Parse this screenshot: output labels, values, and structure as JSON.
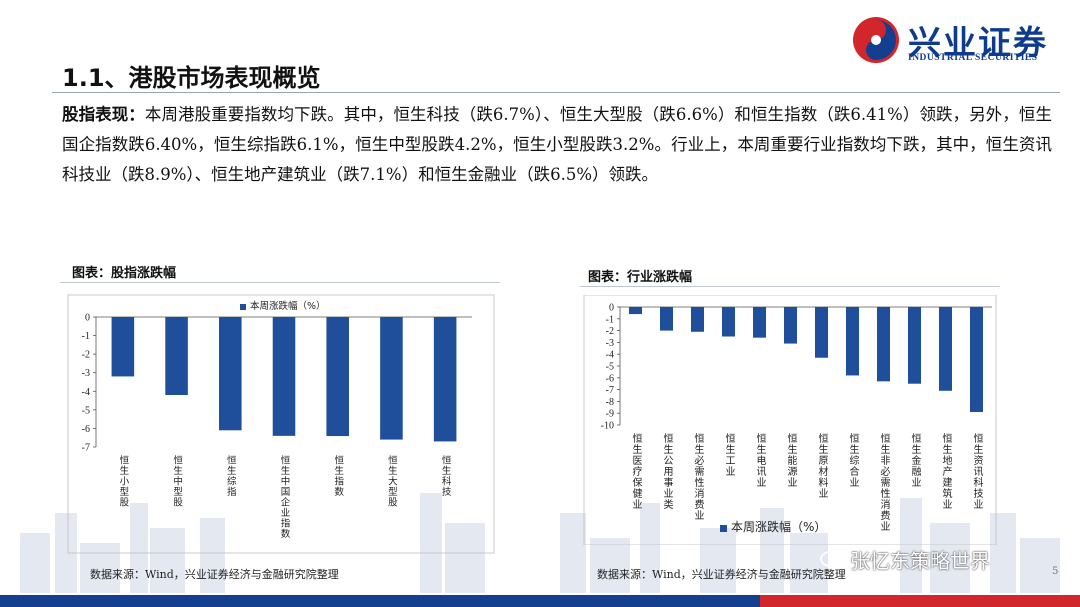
{
  "header": {
    "logo_cn": "兴业证券",
    "logo_en": "INDUSTRIAL SECURITIES",
    "title": "1.1、港股市场表现概览"
  },
  "summary": {
    "lead": "股指表现：",
    "text": "本周港股重要指数均下跌。其中，恒生科技（跌6.7%）、恒生大型股（跌6.6%）和恒生指数（跌6.41%）领跌，另外，恒生国企指数跌6.40%，恒生综指跌6.1%，恒生中型股跌4.2%，恒生小型股跌3.2%。行业上，本周重要行业指数均下跌，其中，恒生资讯科技业（跌8.9%）、恒生地产建筑业（跌7.1%）和恒生金融业（跌6.5%）领跌。"
  },
  "chart_data": [
    {
      "caption": "图表：股指涨跌幅",
      "type": "bar",
      "legend": "本周涨跌幅（%）",
      "legend_position": "top",
      "categories": [
        "恒生小型股",
        "恒生中型股",
        "恒生综指",
        "恒生中国企业指数",
        "恒生指数",
        "恒生大型股",
        "恒生科技"
      ],
      "series": [
        {
          "name": "本周涨跌幅（%）",
          "values": [
            -3.2,
            -4.2,
            -6.1,
            -6.4,
            -6.41,
            -6.6,
            -6.7
          ]
        }
      ],
      "ylim": [
        -7,
        0
      ],
      "yticks": [
        "0",
        "-1",
        "-2",
        "-3",
        "-4",
        "-5",
        "-6",
        "-7"
      ],
      "grid": false,
      "source": "数据来源：Wind，兴业证券经济与金融研究院整理"
    },
    {
      "caption": "图表：行业涨跌幅",
      "type": "bar",
      "legend": "本周涨跌幅（%）",
      "legend_position": "bottom",
      "categories": [
        "恒生医疗保健业",
        "恒生公用事业类",
        "恒生必需性消费业",
        "恒生工业",
        "恒生电讯业",
        "恒生能源业",
        "恒生原材料业",
        "恒生综合业",
        "恒生非必需性消费业",
        "恒生金融业",
        "恒生地产建筑业",
        "恒生资讯科技业"
      ],
      "series": [
        {
          "name": "本周涨跌幅（%）",
          "values": [
            -0.6,
            -2.0,
            -2.1,
            -2.5,
            -2.6,
            -3.1,
            -4.3,
            -5.8,
            -6.3,
            -6.5,
            -7.1,
            -8.9
          ]
        }
      ],
      "ylim": [
        -10,
        0
      ],
      "yticks": [
        "0",
        "-1",
        "-2",
        "-3",
        "-4",
        "-5",
        "-6",
        "-7",
        "-8",
        "-9",
        "-10"
      ],
      "grid": false,
      "source": "数据来源：Wind，兴业证券经济与金融研究院整理"
    }
  ],
  "watermark": "张忆东策略世界",
  "page_number": "5",
  "colors": {
    "bar": "#1f4e9a",
    "brand_blue": "#143f8f",
    "brand_red": "#d1262b"
  }
}
